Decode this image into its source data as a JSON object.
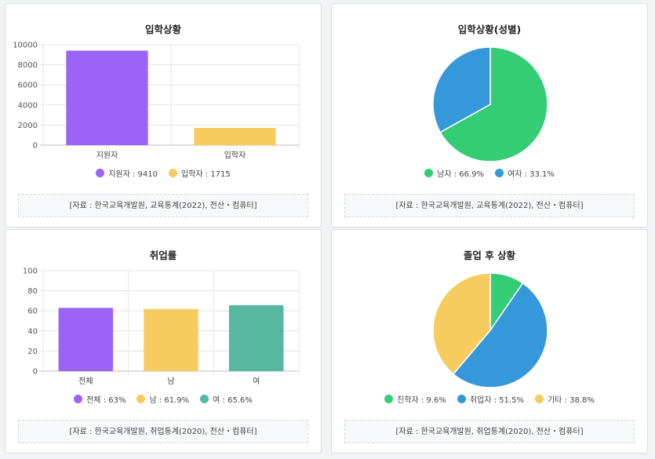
{
  "charts": [
    {
      "title": "입학상황",
      "source": "[자료 : 한국교육개발원, 교육통계(2022), 전산・컴퓨터]",
      "legend": [
        {
          "label": "지원자 : 9410",
          "color": "#9b64f7"
        },
        {
          "label": "입학자 : 1715",
          "color": "#f7cc5f"
        }
      ]
    },
    {
      "title": "입학상황(성별)",
      "source": "[자료 : 한국교육개발원, 교육통계(2022), 전산・컴퓨터]",
      "legend": [
        {
          "label": "남자 : 66.9%",
          "color": "#34cd76"
        },
        {
          "label": "여자 : 33.1%",
          "color": "#3598db"
        }
      ]
    },
    {
      "title": "취업률",
      "source": "[자료 : 한국교육개발원, 취업통계(2020), 전산・컴퓨터]",
      "legend": [
        {
          "label": "전체 : 63%",
          "color": "#9b64f7"
        },
        {
          "label": "남 : 61.9%",
          "color": "#f7cc5f"
        },
        {
          "label": "여 : 65.6%",
          "color": "#56b99f"
        }
      ]
    },
    {
      "title": "졸업 후 상황",
      "source": "[자료 : 한국교육개발원, 취업통계(2020), 전산・컴퓨터]",
      "legend": [
        {
          "label": "진학자 : 9.6%",
          "color": "#34cd76"
        },
        {
          "label": "취업자 : 51.5%",
          "color": "#3598db"
        },
        {
          "label": "기타 : 38.8%",
          "color": "#f7cc5f"
        }
      ]
    }
  ],
  "chart_data": [
    {
      "type": "bar",
      "title": "입학상황",
      "categories": [
        "지원자",
        "입학자"
      ],
      "values": [
        9410,
        1715
      ],
      "colors": [
        "#9b64f7",
        "#f7cc5f"
      ],
      "ylim": [
        0,
        10000
      ],
      "yticks": [
        0,
        2000,
        4000,
        6000,
        8000,
        10000
      ],
      "grid": true
    },
    {
      "type": "pie",
      "title": "입학상황(성별)",
      "labels": [
        "남자",
        "여자"
      ],
      "values": [
        66.9,
        33.1
      ],
      "colors": [
        "#34cd76",
        "#3598db"
      ]
    },
    {
      "type": "bar",
      "title": "취업률",
      "categories": [
        "전체",
        "남",
        "여"
      ],
      "values": [
        63,
        61.9,
        65.6
      ],
      "colors": [
        "#9b64f7",
        "#f7cc5f",
        "#56b99f"
      ],
      "ylim": [
        0,
        100
      ],
      "yticks": [
        0,
        20,
        40,
        60,
        80,
        100
      ],
      "grid": true
    },
    {
      "type": "pie",
      "title": "졸업 후 상황",
      "labels": [
        "진학자",
        "취업자",
        "기타"
      ],
      "values": [
        9.6,
        51.5,
        38.8
      ],
      "colors": [
        "#34cd76",
        "#3598db",
        "#f7cc5f"
      ]
    }
  ]
}
